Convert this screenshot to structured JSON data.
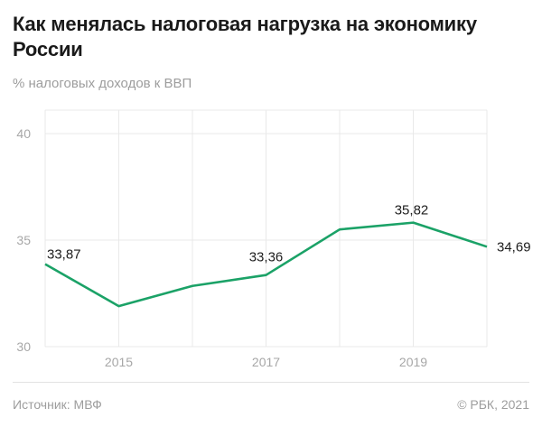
{
  "header": {
    "title": "Как менялась налоговая нагрузка на экономику России",
    "subtitle": "% налоговых доходов к ВВП"
  },
  "footer": {
    "source": "Источник: МВФ",
    "copyright": "© РБК, 2021"
  },
  "colors": {
    "line": "#1ba267",
    "grid": "#e9e9e9",
    "axis_text": "#a7a7a7",
    "title_text": "#1a1a1a",
    "muted_text": "#9d9d9d",
    "point_label_text": "#1d1d1d",
    "background": "#ffffff"
  },
  "chart_data": {
    "type": "line",
    "title": "Как менялась налоговая нагрузка на экономику России",
    "subtitle": "% налоговых доходов к ВВП",
    "source": "МВФ",
    "x": [
      2014,
      2015,
      2016,
      2017,
      2018,
      2019,
      2020
    ],
    "values": [
      33.87,
      31.9,
      32.85,
      33.36,
      35.5,
      35.82,
      34.69
    ],
    "point_labels": [
      {
        "year": 2014,
        "text": "33,87"
      },
      {
        "year": 2017,
        "text": "33,36"
      },
      {
        "year": 2019,
        "text": "35,82"
      },
      {
        "year": 2020,
        "text": "34,69"
      }
    ],
    "x_ticks": [
      {
        "year": 2015,
        "label": "2015"
      },
      {
        "year": 2017,
        "label": "2017"
      },
      {
        "year": 2019,
        "label": "2019"
      }
    ],
    "y_ticks": [
      {
        "value": 30,
        "label": "30"
      },
      {
        "value": 35,
        "label": "35"
      },
      {
        "value": 40,
        "label": "40"
      }
    ],
    "ylim": [
      30,
      41.1
    ],
    "grid": true,
    "legend": false
  }
}
